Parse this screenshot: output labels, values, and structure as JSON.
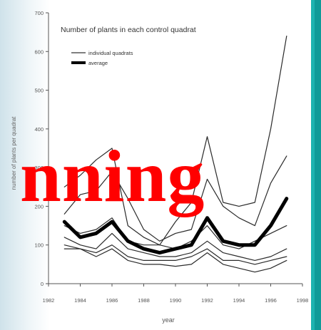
{
  "overlay": {
    "text": "nning",
    "color": "#ff0000"
  },
  "chart_data": {
    "type": "line",
    "title": "Number of plants in each control quadrat",
    "xlabel": "year",
    "ylabel": "number of plants per quadrat",
    "xlim": [
      1982,
      1998
    ],
    "ylim": [
      0,
      700
    ],
    "xticks": [
      1982,
      1984,
      1986,
      1988,
      1990,
      1992,
      1994,
      1996,
      1998
    ],
    "yticks": [
      0,
      100,
      200,
      300,
      400,
      500,
      600,
      700
    ],
    "legend": [
      {
        "name": "individual quadrats",
        "style": "thin"
      },
      {
        "name": "average",
        "style": "thick"
      }
    ],
    "legend_position": "top-left",
    "x": [
      1983,
      1984,
      1985,
      1986,
      1987,
      1988,
      1989,
      1990,
      1991,
      1992,
      1993,
      1994,
      1995,
      1996,
      1997
    ],
    "series": [
      {
        "style": "thin",
        "values": [
          250,
          280,
          320,
          350,
          150,
          120,
          100,
          160,
          210,
          380,
          210,
          200,
          210,
          400,
          640
        ]
      },
      {
        "style": "thin",
        "values": [
          180,
          230,
          240,
          290,
          220,
          140,
          110,
          130,
          140,
          270,
          200,
          170,
          150,
          260,
          330
        ]
      },
      {
        "style": "thin",
        "values": [
          150,
          130,
          140,
          170,
          110,
          100,
          100,
          90,
          110,
          150,
          100,
          90,
          110,
          130,
          150
        ]
      },
      {
        "style": "thin",
        "values": [
          120,
          100,
          90,
          130,
          90,
          80,
          70,
          70,
          80,
          110,
          80,
          70,
          60,
          70,
          90
        ]
      },
      {
        "style": "thin",
        "values": [
          100,
          90,
          80,
          100,
          70,
          60,
          60,
          60,
          70,
          90,
          60,
          60,
          50,
          60,
          70
        ]
      },
      {
        "style": "thin",
        "values": [
          90,
          90,
          70,
          90,
          60,
          50,
          50,
          45,
          50,
          80,
          50,
          40,
          30,
          40,
          60
        ]
      },
      {
        "style": "thick",
        "values": [
          160,
          120,
          130,
          160,
          110,
          90,
          80,
          90,
          100,
          170,
          110,
          100,
          100,
          150,
          220
        ]
      }
    ]
  }
}
